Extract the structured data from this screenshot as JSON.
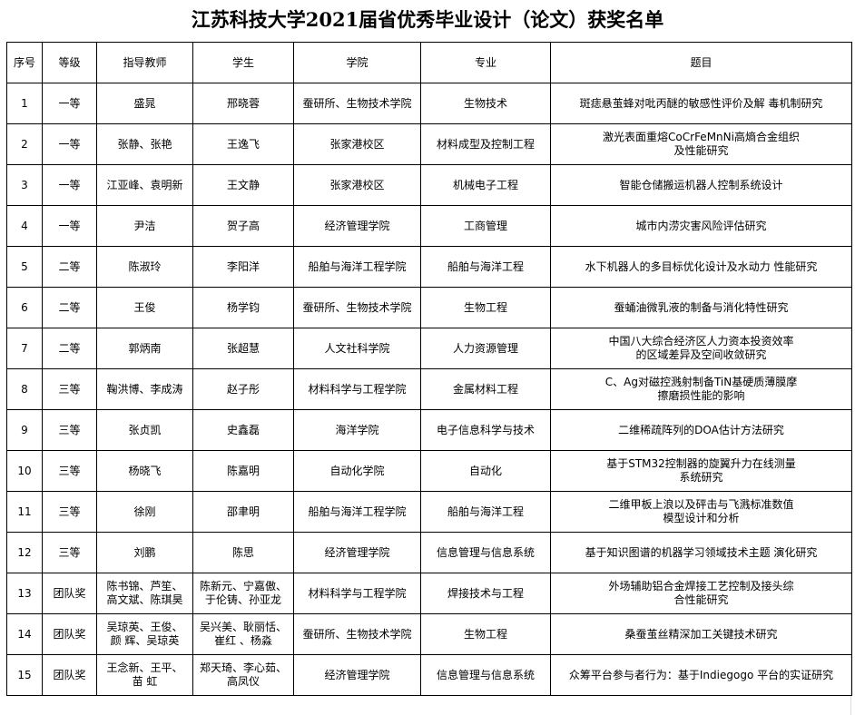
{
  "title": "江苏科技大学2021届省优秀毕业设计（论文）获奖名单",
  "columns": [
    "序号",
    "等级",
    "指导教师",
    "学生",
    "学院",
    "专业",
    "题目"
  ],
  "rows": [
    [
      "1",
      "一等",
      "盛晁",
      "邢晓蓉",
      "蚕研所、生物技术学院",
      "生物技术",
      "斑痣悬茧蜂对吡丙醚的敏感性评价及解  毒机制研究"
    ],
    [
      "2",
      "一等",
      "张静、张艳",
      "王逸飞",
      "张家港校区",
      "材料成型及控制工程",
      "激光表面重熔CoCrFeMnNi高熵合金组织\n及性能研究"
    ],
    [
      "3",
      "一等",
      "江亚峰、袁明新",
      "王文静",
      "张家港校区",
      "机械电子工程",
      "智能仓储搬运机器人控制系统设计"
    ],
    [
      "4",
      "一等",
      "尹洁",
      "贺子高",
      "经济管理学院",
      "工商管理",
      "城市内涝灾害风险评估研究"
    ],
    [
      "5",
      "二等",
      "陈淑玲",
      "李阳洋",
      "船舶与海洋工程学院",
      "船舶与海洋工程",
      "水下机器人的多目标优化设计及水动力  性能研究"
    ],
    [
      "6",
      "二等",
      "王俊",
      "杨学钧",
      "蚕研所、生物技术学院",
      "生物工程",
      "蚕蛹油微乳液的制备与消化特性研究"
    ],
    [
      "7",
      "二等",
      "郭炳南",
      "张超慧",
      "人文社科学院",
      "人力资源管理",
      "中国八大综合经济区人力资本投资效率\n的区域差异及空间收敛研究"
    ],
    [
      "8",
      "三等",
      "鞠洪博、李成涛",
      "赵子彤",
      "材料科学与工程学院",
      "金属材料工程",
      "C、Ag对磁控溅射制备TiN基硬质薄膜摩\n擦磨损性能的影响"
    ],
    [
      "9",
      "三等",
      "张贞凯",
      "史鑫磊",
      "海洋学院",
      "电子信息科学与技术",
      "二维稀疏阵列的DOA估计方法研究"
    ],
    [
      "10",
      "三等",
      "杨晓飞",
      "陈嘉明",
      "自动化学院",
      "自动化",
      "基于STM32控制器的旋翼升力在线测量\n系统研究"
    ],
    [
      "11",
      "三等",
      "徐刚",
      "邵聿明",
      "船舶与海洋工程学院",
      "船舶与海洋工程",
      "二维甲板上浪以及砰击与飞溅标准数值\n模型设计和分析"
    ],
    [
      "12",
      "三等",
      "刘鹏",
      "陈思",
      "经济管理学院",
      "信息管理与信息系统",
      "基于知识图谱的机器学习领域技术主题  演化研究"
    ],
    [
      "13",
      "团队奖",
      "陈书锦、芦笙、\n高文斌、陈琪昊",
      "陈新元、宁嘉傲、\n于伦铸、孙亚龙",
      "材料科学与工程学院",
      "焊接技术与工程",
      "外场辅助铝合金焊接工艺控制及接头综\n合性能研究"
    ],
    [
      "14",
      "团队奖",
      "吴琼英、王俊、\n颜  辉、吴琼英",
      "吴兴美、耿丽恬、\n崔红  、杨淼",
      "蚕研所、生物技术学院",
      "生物工程",
      "桑蚕茧丝精深加工关键技术研究"
    ],
    [
      "15",
      "团队奖",
      "王念新、王平、\n苗  虹",
      "郑天琦、李心茹、\n高凤仪",
      "经济管理学院",
      "信息管理与信息系统",
      "众筹平台参与者行为：基于Indiegogo 平台的实证研究"
    ]
  ]
}
